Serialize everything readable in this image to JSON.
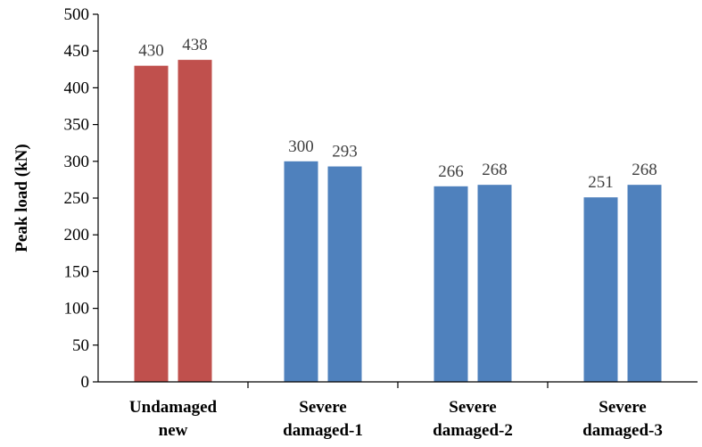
{
  "chart_data": {
    "type": "bar",
    "title": "",
    "xlabel": "",
    "ylabel": "Peak load (kN)",
    "ylim": [
      0,
      500
    ],
    "ytick_step": 50,
    "grid": false,
    "categories": [
      [
        "Undamaged",
        "new"
      ],
      [
        "Severe",
        "damaged-1"
      ],
      [
        "Severe",
        "damaged-2"
      ],
      [
        "Severe",
        "damaged-3"
      ]
    ],
    "series": [
      {
        "values": [
          430,
          300,
          266,
          251
        ]
      },
      {
        "values": [
          438,
          293,
          268,
          268
        ]
      }
    ],
    "category_colors": [
      "#C0504D",
      "#4F81BD",
      "#4F81BD",
      "#4F81BD"
    ]
  }
}
